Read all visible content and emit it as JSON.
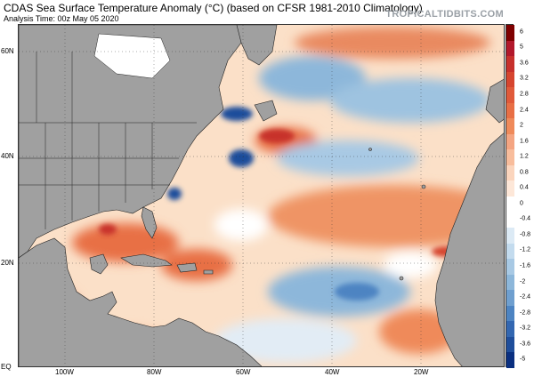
{
  "header": {
    "title": "CDAS Sea Surface Temperature Anomaly (°C) (based on CFSR 1981-2010 Climatology)",
    "subtitle": "Analysis Time: 00z May 05 2020",
    "brand": "TROPICALTIDBITS.COM"
  },
  "map": {
    "lat_labels": [
      "60N",
      "40N",
      "20N",
      "EQ"
    ],
    "lon_labels": [
      "100W",
      "80W",
      "60W",
      "40W",
      "20W"
    ],
    "land_color": "#a0a0a0",
    "border_color": "#222222"
  },
  "colorbar": {
    "ticks": [
      "6",
      "5",
      "3.6",
      "3.2",
      "2.8",
      "2.4",
      "2",
      "1.6",
      "1.2",
      "0.8",
      "0.4",
      "0",
      "-0.4",
      "-0.8",
      "-1.2",
      "-1.6",
      "-2",
      "-2.4",
      "-2.8",
      "-3.2",
      "-3.6",
      "-5"
    ],
    "colors": [
      "#7f0000",
      "#b2182b",
      "#c7302c",
      "#d6452f",
      "#e05a3a",
      "#e86f45",
      "#ef8a5a",
      "#f4a582",
      "#f8bd9c",
      "#fbd5bd",
      "#fde7d8",
      "#ffffff",
      "#ffffff",
      "#dceaf5",
      "#c3dbee",
      "#a8c9e4",
      "#8db7da",
      "#6f9fcf",
      "#4d84c2",
      "#3367b1",
      "#1f4e9b",
      "#0a2f80"
    ]
  }
}
